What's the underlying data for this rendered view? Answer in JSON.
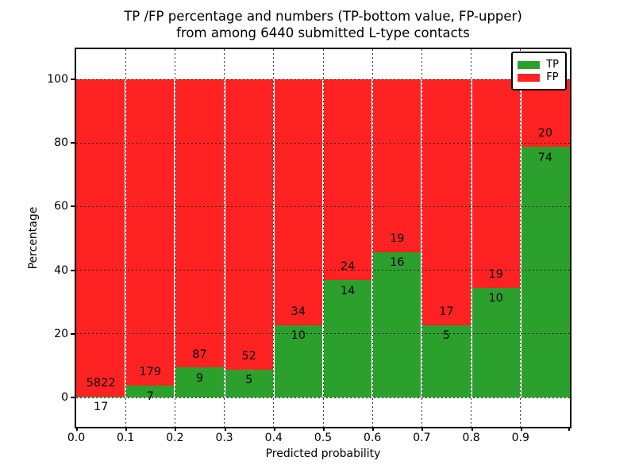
{
  "title": {
    "line1": "TP /FP percentage and numbers (TP-bottom value, FP-upper)",
    "line2": "from among 6440 submitted L-type contacts"
  },
  "axes": {
    "x_label": "Predicted probability",
    "y_label": "Percentage",
    "x_ticks": [
      "0.0",
      "0.1",
      "0.2",
      "0.3",
      "0.4",
      "0.5",
      "0.6",
      "0.7",
      "0.8",
      "0.9"
    ],
    "y_ticks": [
      0,
      20,
      40,
      60,
      80,
      100
    ]
  },
  "legend": {
    "position": "upper-right",
    "items": [
      {
        "label": "TP",
        "color": "#2ca02c"
      },
      {
        "label": "FP",
        "color": "#ff2222"
      }
    ]
  },
  "chart_data": {
    "type": "bar",
    "stacked": true,
    "normalized": "each bin scaled so TP+FP = 100%",
    "title": "TP /FP percentage and numbers (TP-bottom value, FP-upper) from among 6440 submitted L-type contacts",
    "xlabel": "Predicted probability",
    "ylabel": "Percentage",
    "xlim": [
      0.0,
      1.0
    ],
    "ylim": [
      0,
      100
    ],
    "grid": true,
    "legend_position": "upper right",
    "bin_edges": [
      0.0,
      0.1,
      0.2,
      0.3,
      0.4,
      0.5,
      0.6,
      0.7,
      0.8,
      0.9,
      1.0
    ],
    "series": [
      {
        "name": "TP",
        "color": "#2ca02c",
        "counts": [
          17,
          7,
          9,
          5,
          10,
          14,
          16,
          5,
          10,
          74
        ]
      },
      {
        "name": "FP",
        "color": "#ff2222",
        "counts": [
          5822,
          179,
          87,
          52,
          34,
          24,
          19,
          17,
          19,
          20
        ]
      }
    ],
    "tp_percent_per_bin": [
      0.29,
      3.76,
      9.38,
      8.77,
      22.73,
      36.84,
      45.71,
      22.73,
      34.48,
      78.72
    ],
    "total_contacts_in_title": 6440
  },
  "colors": {
    "tp": "#2ca02c",
    "fp": "#ff2222",
    "background": "#ffffff",
    "text": "#000000",
    "grid": "#000000"
  }
}
